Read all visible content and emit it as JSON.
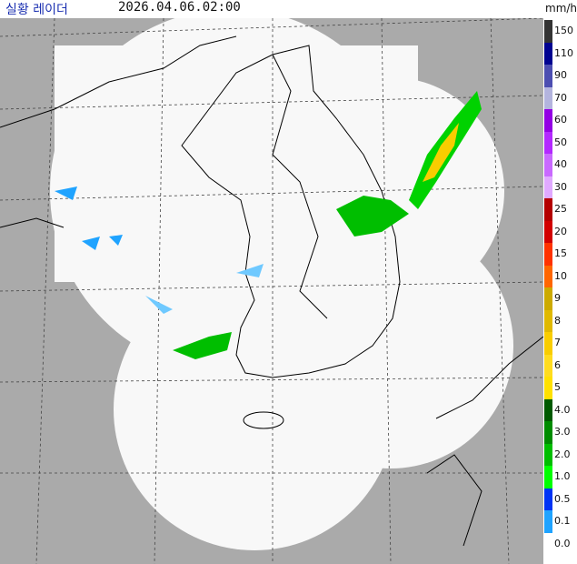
{
  "header": {
    "title": "실황 레이더",
    "time": "2026.04.06.02:00"
  },
  "legend": {
    "unit": "mm/h",
    "levels": [
      {
        "label": "150",
        "color": "#333333"
      },
      {
        "label": "110",
        "color": "#000390"
      },
      {
        "label": "90",
        "color": "#4c4eb1"
      },
      {
        "label": "70",
        "color": "#b3b4de"
      },
      {
        "label": "60",
        "color": "#9300e4"
      },
      {
        "label": "50",
        "color": "#b329ff"
      },
      {
        "label": "40",
        "color": "#c969ff"
      },
      {
        "label": "30",
        "color": "#e0a9ff"
      },
      {
        "label": "25",
        "color": "#b40000"
      },
      {
        "label": "20",
        "color": "#d20000"
      },
      {
        "label": "15",
        "color": "#ff3200"
      },
      {
        "label": "10",
        "color": "#ff6600"
      },
      {
        "label": "9",
        "color": "#ccaa00"
      },
      {
        "label": "8",
        "color": "#e0b900"
      },
      {
        "label": "7",
        "color": "#f9cd00"
      },
      {
        "label": "6",
        "color": "#ffdc1f"
      },
      {
        "label": "5",
        "color": "#ffe100"
      },
      {
        "label": "4.0",
        "color": "#005a00"
      },
      {
        "label": "3.0",
        "color": "#008c00"
      },
      {
        "label": "2.0",
        "color": "#00be00"
      },
      {
        "label": "1.0",
        "color": "#00ff00"
      },
      {
        "label": "0.5",
        "color": "#0033f5"
      },
      {
        "label": "0.1",
        "color": "#1fa3ff"
      },
      {
        "label": "0.0",
        "color": "#ffffff"
      }
    ]
  }
}
